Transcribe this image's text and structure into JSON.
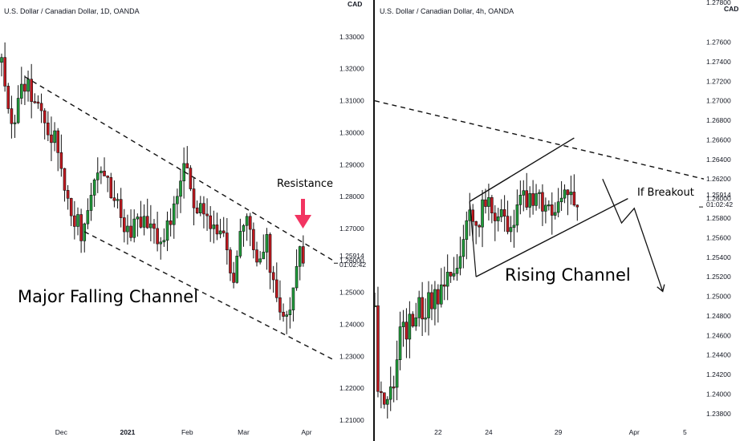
{
  "chart_data": [
    {
      "type": "candlestick",
      "title": "U.S. Dollar / Canadian Dollar, 1D, OANDA",
      "axis_unit": "CAD",
      "y_ticks": [
        "1.33000",
        "1.32000",
        "1.31000",
        "1.30000",
        "1.29000",
        "1.28000",
        "1.27000",
        "1.26000",
        "1.25000",
        "1.24000",
        "1.23000",
        "1.22000",
        "1.21000"
      ],
      "ylim": [
        1.2075,
        1.3375
      ],
      "x_ticks": [
        "Dec",
        "2021",
        "Feb",
        "Mar",
        "Apr"
      ],
      "x_tick_index": [
        18,
        38,
        56,
        73,
        92
      ],
      "x_count": 100,
      "price_label": "1.25914",
      "countdown_label": "01:02:42",
      "price": 1.25914,
      "annotations": [
        "Major Falling Channel",
        "Resistance"
      ],
      "channel_lines": [
        {
          "i0": 7,
          "p0": 1.3175,
          "i1": 100,
          "p1": 1.26
        },
        {
          "i0": 25,
          "p0": 1.269,
          "i1": 100,
          "p1": 1.229
        }
      ],
      "waypoints": [
        [
          0,
          1.322
        ],
        [
          3,
          1.303
        ],
        [
          7,
          1.316
        ],
        [
          12,
          1.306
        ],
        [
          17,
          1.296
        ],
        [
          20,
          1.279
        ],
        [
          24,
          1.269
        ],
        [
          27,
          1.277
        ],
        [
          30,
          1.291
        ],
        [
          33,
          1.283
        ],
        [
          36,
          1.272
        ],
        [
          39,
          1.268
        ],
        [
          43,
          1.275
        ],
        [
          47,
          1.266
        ],
        [
          51,
          1.272
        ],
        [
          55,
          1.288
        ],
        [
          58,
          1.28
        ],
        [
          61,
          1.272
        ],
        [
          64,
          1.269
        ],
        [
          67,
          1.268
        ],
        [
          70,
          1.252
        ],
        [
          73,
          1.273
        ],
        [
          77,
          1.263
        ],
        [
          80,
          1.265
        ],
        [
          83,
          1.247
        ],
        [
          86,
          1.24
        ],
        [
          88,
          1.253
        ],
        [
          90,
          1.261
        ],
        [
          91,
          1.2591
        ]
      ]
    },
    {
      "type": "candlestick",
      "title": "U.S. Dollar / Canadian Dollar, 4h, OANDA",
      "axis_unit": "CAD",
      "y_ticks": [
        "1.27600",
        "1.27400",
        "1.27200",
        "1.27000",
        "1.26800",
        "1.26600",
        "1.26400",
        "1.26200",
        "1.26000",
        "1.25800",
        "1.25600",
        "1.25400",
        "1.25200",
        "1.25000",
        "1.24800",
        "1.24600",
        "1.24400",
        "1.24200",
        "1.24000",
        "1.23800"
      ],
      "y_tick_top_clipped": "1.27800",
      "ylim": [
        1.237,
        1.279
      ],
      "x_ticks": [
        "22",
        "24",
        "29",
        "Apr",
        "5"
      ],
      "x_tick_index": [
        20,
        36,
        58,
        82,
        98
      ],
      "x_count": 104,
      "price_label": "1.25914",
      "countdown_label": "01:02:42",
      "price": 1.25914,
      "annotations": [
        "Rising Channel",
        "If Breakout"
      ],
      "resistance_line": {
        "i0": 0,
        "p0": 1.27,
        "i1": 104,
        "p1": 1.262
      },
      "channel_lines": [
        {
          "i0": 30,
          "p0": 1.2597,
          "i1": 63,
          "p1": 1.2662
        },
        {
          "i0": 32,
          "p0": 1.252,
          "i1": 80,
          "p1": 1.26
        }
      ],
      "waypoints": [
        [
          0,
          1.249
        ],
        [
          1,
          1.24
        ],
        [
          3,
          1.239
        ],
        [
          6,
          1.242
        ],
        [
          8,
          1.246
        ],
        [
          12,
          1.248
        ],
        [
          16,
          1.249
        ],
        [
          20,
          1.25
        ],
        [
          24,
          1.252
        ],
        [
          28,
          1.255
        ],
        [
          30,
          1.259
        ],
        [
          33,
          1.258
        ],
        [
          36,
          1.2595
        ],
        [
          40,
          1.2575
        ],
        [
          43,
          1.2565
        ],
        [
          46,
          1.259
        ],
        [
          49,
          1.261
        ],
        [
          52,
          1.26
        ],
        [
          55,
          1.2585
        ],
        [
          58,
          1.2595
        ],
        [
          61,
          1.261
        ],
        [
          63,
          1.2595
        ],
        [
          64,
          1.2591
        ]
      ],
      "breakout_path": [
        [
          72,
          1.262
        ],
        [
          78,
          1.2575
        ],
        [
          82,
          1.259
        ],
        [
          91,
          1.2505
        ]
      ]
    }
  ]
}
